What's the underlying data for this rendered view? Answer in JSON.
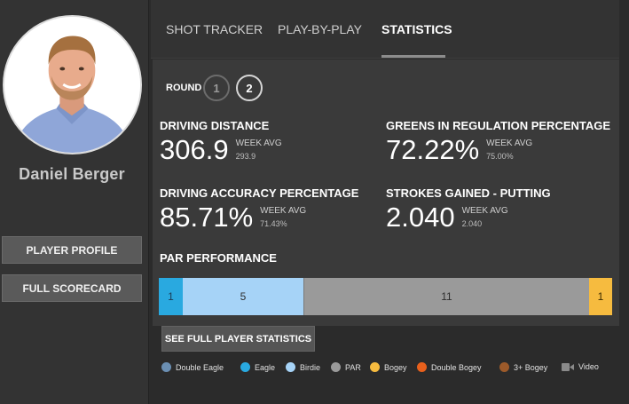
{
  "player": {
    "name": "Daniel Berger"
  },
  "left_buttons": {
    "profile": "PLAYER PROFILE",
    "scorecard": "FULL SCORECARD"
  },
  "tabs": [
    {
      "label": "SHOT TRACKER"
    },
    {
      "label": "PLAY-BY-PLAY"
    },
    {
      "label": "STATISTICS",
      "active": true
    }
  ],
  "round": {
    "label": "ROUND",
    "options": [
      "1",
      "2"
    ],
    "selected": "2"
  },
  "stats": [
    {
      "title": "DRIVING DISTANCE",
      "value": "306.9",
      "avg_label": "WEEK AVG",
      "avg_value": "293.9"
    },
    {
      "title": "GREENS IN REGULATION PERCENTAGE",
      "value": "72.22%",
      "avg_label": "WEEK AVG",
      "avg_value": "75.00%"
    },
    {
      "title": "DRIVING ACCURACY PERCENTAGE",
      "value": "85.71%",
      "avg_label": "WEEK AVG",
      "avg_value": "71.43%"
    },
    {
      "title": "STROKES GAINED - PUTTING",
      "value": "2.040",
      "avg_label": "WEEK AVG",
      "avg_value": "2.040"
    }
  ],
  "par_performance": {
    "title": "PAR PERFORMANCE",
    "segments": [
      {
        "type": "Eagle",
        "count": "1",
        "color": "#29a9e0"
      },
      {
        "type": "Birdie",
        "count": "5",
        "color": "#a6d3f7"
      },
      {
        "type": "PAR",
        "count": "11",
        "color": "#9a9a9a"
      },
      {
        "type": "Bogey",
        "count": "1",
        "color": "#f6bb3f"
      }
    ]
  },
  "full_stats_button": "SEE FULL PLAYER STATISTICS",
  "legend": [
    {
      "label": "Double Eagle",
      "color": "#6b8fb3"
    },
    {
      "label": "Eagle",
      "color": "#29a9e0"
    },
    {
      "label": "Birdie",
      "color": "#a6d3f7"
    },
    {
      "label": "PAR",
      "color": "#9a9a9a"
    },
    {
      "label": "Bogey",
      "color": "#f6bb3f"
    },
    {
      "label": "Double Bogey",
      "color": "#e8601c"
    },
    {
      "label": "3+ Bogey",
      "color": "#9c5a2a"
    },
    {
      "label": "Video",
      "icon": "video-camera-icon"
    }
  ]
}
